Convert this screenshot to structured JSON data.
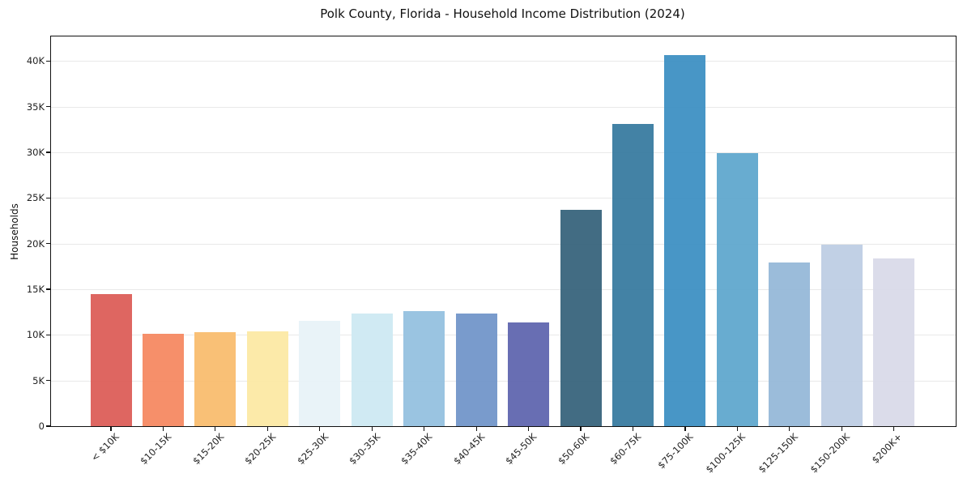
{
  "chart_data": {
    "type": "bar",
    "title": "Polk County, Florida - Household Income Distribution (2024)",
    "xlabel": "",
    "ylabel": "Households",
    "categories": [
      "< $10K",
      "$10-15K",
      "$15-20K",
      "$20-25K",
      "$25-30K",
      "$30-35K",
      "$35-40K",
      "$40-45K",
      "$45-50K",
      "$50-60K",
      "$60-75K",
      "$75-100K",
      "$100-125K",
      "$125-150K",
      "$150-200K",
      "$200K+"
    ],
    "values": [
      14500,
      10150,
      10300,
      10400,
      11500,
      12350,
      12600,
      12300,
      11350,
      23700,
      33150,
      40700,
      29900,
      17950,
      19900,
      18400
    ],
    "bar_colors": [
      "#dc5a55",
      "#f5875f",
      "#f9bb6c",
      "#fce8a3",
      "#e7f2f7",
      "#cce8f2",
      "#92bfdf",
      "#6f93c8",
      "#5c63ad",
      "#34617a",
      "#35799e",
      "#3a8ec2",
      "#5da6cc",
      "#93b7d7",
      "#bccce3",
      "#d8d9e8"
    ],
    "ylim": [
      0,
      42700
    ],
    "yticks": {
      "values": [
        0,
        5000,
        10000,
        15000,
        20000,
        25000,
        30000,
        35000,
        40000
      ],
      "labels": [
        "0",
        "5K",
        "10K",
        "15K",
        "20K",
        "25K",
        "30K",
        "35K",
        "40K"
      ]
    },
    "grid": "horizontal-only",
    "legend": "none",
    "frame": "full-box"
  }
}
